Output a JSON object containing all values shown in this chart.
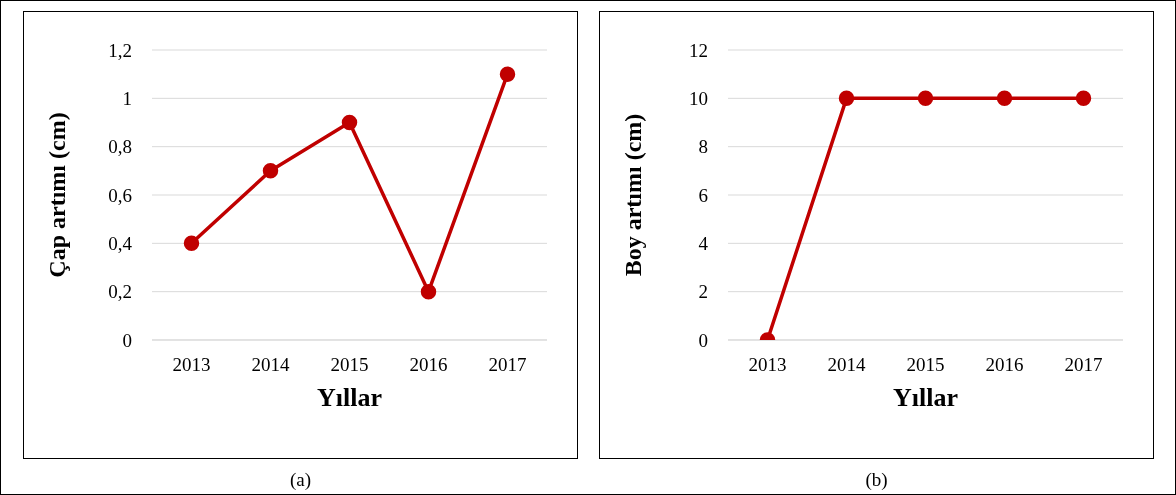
{
  "chart_data": [
    {
      "type": "line",
      "xlabel": "Yıllar",
      "ylabel": "Çap artımı (cm)",
      "categories": [
        "2013",
        "2014",
        "2015",
        "2016",
        "2017"
      ],
      "series": [
        {
          "color": "#c00000",
          "values": [
            0.4,
            0.7,
            0.9,
            0.2,
            1.1
          ]
        }
      ],
      "ylim": [
        0,
        1.2
      ],
      "yticks": [
        0,
        {
          "value": 0.2,
          "label": "0,2"
        },
        {
          "value": 0.4,
          "label": "0,4"
        },
        {
          "value": 0.6,
          "label": "0,6"
        },
        {
          "value": 0.8,
          "label": "0,8"
        },
        1,
        {
          "value": 1.2,
          "label": "1,2"
        }
      ],
      "grid": "y",
      "marker": "circle",
      "line_style": "solid",
      "annotations": [
        "(a)"
      ]
    },
    {
      "type": "line",
      "xlabel": "Yıllar",
      "ylabel": "Boy artımı (cm)",
      "categories": [
        "2013",
        "2014",
        "2015",
        "2016",
        "2017"
      ],
      "series": [
        {
          "color": "#c00000",
          "values": [
            0,
            10,
            10,
            10,
            10
          ]
        }
      ],
      "ylim": [
        0,
        12
      ],
      "yticks": [
        0,
        2,
        4,
        6,
        8,
        10,
        12
      ],
      "grid": "y",
      "marker": "circle",
      "line_style": "solid",
      "annotations": [
        "(b)"
      ]
    }
  ]
}
